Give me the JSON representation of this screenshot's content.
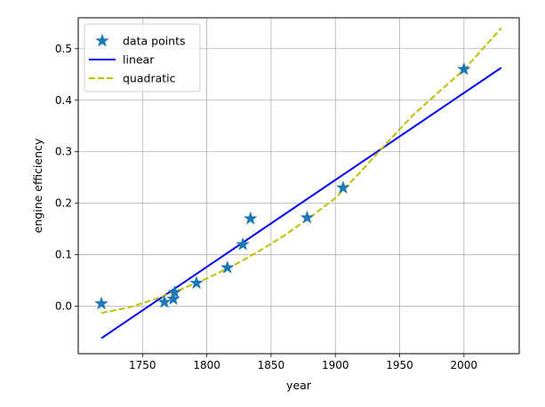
{
  "chart_data": {
    "type": "scatter",
    "title": "",
    "xlabel": "year",
    "ylabel": "engine efficiency",
    "xlim": [
      1700,
      2043
    ],
    "ylim": [
      -0.092,
      0.56
    ],
    "xticks": [
      1750,
      1800,
      1850,
      1900,
      1950,
      2000
    ],
    "yticks": [
      0.0,
      0.1,
      0.2,
      0.3,
      0.4,
      0.5
    ],
    "xtick_labels": [
      "1750",
      "1800",
      "1850",
      "1900",
      "1950",
      "2000"
    ],
    "ytick_labels": [
      "0.0",
      "0.1",
      "0.2",
      "0.3",
      "0.4",
      "0.5"
    ],
    "grid": true,
    "legend_position": "top-left",
    "series": [
      {
        "name": "data points",
        "kind": "scatter",
        "marker": "star",
        "color": "#1f77b4",
        "x": [
          1718,
          1767,
          1774,
          1775,
          1792,
          1816,
          1828,
          1834,
          1878,
          1906,
          2000
        ],
        "y": [
          0.005,
          0.008,
          0.014,
          0.027,
          0.045,
          0.075,
          0.12,
          0.17,
          0.172,
          0.23,
          0.46
        ]
      },
      {
        "name": "linear",
        "kind": "line",
        "style": "solid",
        "color": "#0000ff",
        "x": [
          1718,
          2029
        ],
        "y": [
          -0.062,
          0.463
        ]
      },
      {
        "name": "quadratic",
        "kind": "line",
        "style": "dashed",
        "color": "#bfbf00",
        "x": [
          1718,
          1740,
          1760,
          1780,
          1800,
          1820,
          1840,
          1860,
          1880,
          1900,
          1920,
          1940,
          1960,
          1980,
          2000,
          2029
        ],
        "y": [
          -0.013,
          -0.002,
          0.014,
          0.033,
          0.054,
          0.078,
          0.106,
          0.137,
          0.172,
          0.21,
          0.262,
          0.317,
          0.37,
          0.415,
          0.459,
          0.54
        ]
      }
    ]
  }
}
